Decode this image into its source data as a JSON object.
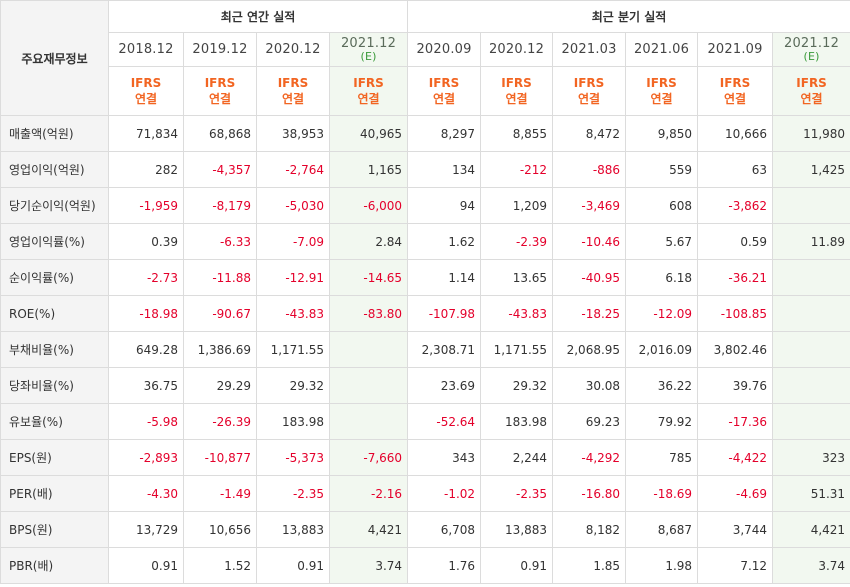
{
  "header": {
    "corner_label": "주요재무정보",
    "annual_group": "최근 연간 실적",
    "quarter_group": "최근 분기 실적",
    "annual_periods": [
      {
        "label": "2018.12",
        "estimate": ""
      },
      {
        "label": "2019.12",
        "estimate": ""
      },
      {
        "label": "2020.12",
        "estimate": ""
      },
      {
        "label": "2021.12",
        "estimate": "(E)"
      }
    ],
    "quarter_periods": [
      {
        "label": "2020.09",
        "estimate": ""
      },
      {
        "label": "2020.12",
        "estimate": ""
      },
      {
        "label": "2021.03",
        "estimate": ""
      },
      {
        "label": "2021.06",
        "estimate": ""
      },
      {
        "label": "2021.09",
        "estimate": ""
      },
      {
        "label": "2021.12",
        "estimate": "(E)"
      }
    ],
    "ifrs_top": "IFRS",
    "ifrs_bottom": "연결"
  },
  "rows": [
    {
      "label": "매출액(억원)",
      "values": [
        "71,834",
        "68,868",
        "38,953",
        "40,965",
        "8,297",
        "8,855",
        "8,472",
        "9,850",
        "10,666",
        "11,980"
      ]
    },
    {
      "label": "영업이익(억원)",
      "values": [
        "282",
        "-4,357",
        "-2,764",
        "1,165",
        "134",
        "-212",
        "-886",
        "559",
        "63",
        "1,425"
      ]
    },
    {
      "label": "당기순이익(억원)",
      "values": [
        "-1,959",
        "-8,179",
        "-5,030",
        "-6,000",
        "94",
        "1,209",
        "-3,469",
        "608",
        "-3,862",
        ""
      ]
    },
    {
      "label": "영업이익률(%)",
      "values": [
        "0.39",
        "-6.33",
        "-7.09",
        "2.84",
        "1.62",
        "-2.39",
        "-10.46",
        "5.67",
        "0.59",
        "11.89"
      ]
    },
    {
      "label": "순이익률(%)",
      "values": [
        "-2.73",
        "-11.88",
        "-12.91",
        "-14.65",
        "1.14",
        "13.65",
        "-40.95",
        "6.18",
        "-36.21",
        ""
      ]
    },
    {
      "label": "ROE(%)",
      "values": [
        "-18.98",
        "-90.67",
        "-43.83",
        "-83.80",
        "-107.98",
        "-43.83",
        "-18.25",
        "-12.09",
        "-108.85",
        ""
      ]
    },
    {
      "label": "부채비율(%)",
      "values": [
        "649.28",
        "1,386.69",
        "1,171.55",
        "",
        "2,308.71",
        "1,171.55",
        "2,068.95",
        "2,016.09",
        "3,802.46",
        ""
      ]
    },
    {
      "label": "당좌비율(%)",
      "values": [
        "36.75",
        "29.29",
        "29.32",
        "",
        "23.69",
        "29.32",
        "30.08",
        "36.22",
        "39.76",
        ""
      ]
    },
    {
      "label": "유보율(%)",
      "values": [
        "-5.98",
        "-26.39",
        "183.98",
        "",
        "-52.64",
        "183.98",
        "69.23",
        "79.92",
        "-17.36",
        ""
      ]
    },
    {
      "label": "EPS(원)",
      "values": [
        "-2,893",
        "-10,877",
        "-5,373",
        "-7,660",
        "343",
        "2,244",
        "-4,292",
        "785",
        "-4,422",
        "323"
      ]
    },
    {
      "label": "PER(배)",
      "values": [
        "-4.30",
        "-1.49",
        "-2.35",
        "-2.16",
        "-1.02",
        "-2.35",
        "-16.80",
        "-18.69",
        "-4.69",
        "51.31"
      ]
    },
    {
      "label": "BPS(원)",
      "values": [
        "13,729",
        "10,656",
        "13,883",
        "4,421",
        "6,708",
        "13,883",
        "8,182",
        "8,687",
        "3,744",
        "4,421"
      ]
    },
    {
      "label": "PBR(배)",
      "values": [
        "0.91",
        "1.52",
        "0.91",
        "3.74",
        "1.76",
        "0.91",
        "1.85",
        "1.98",
        "7.12",
        "3.74"
      ]
    }
  ],
  "colors": {
    "negative": "#e4002b",
    "ifrs": "#f26522",
    "estimate_shade": "#f2f8f0",
    "header_bg": "#f4f4f4"
  }
}
